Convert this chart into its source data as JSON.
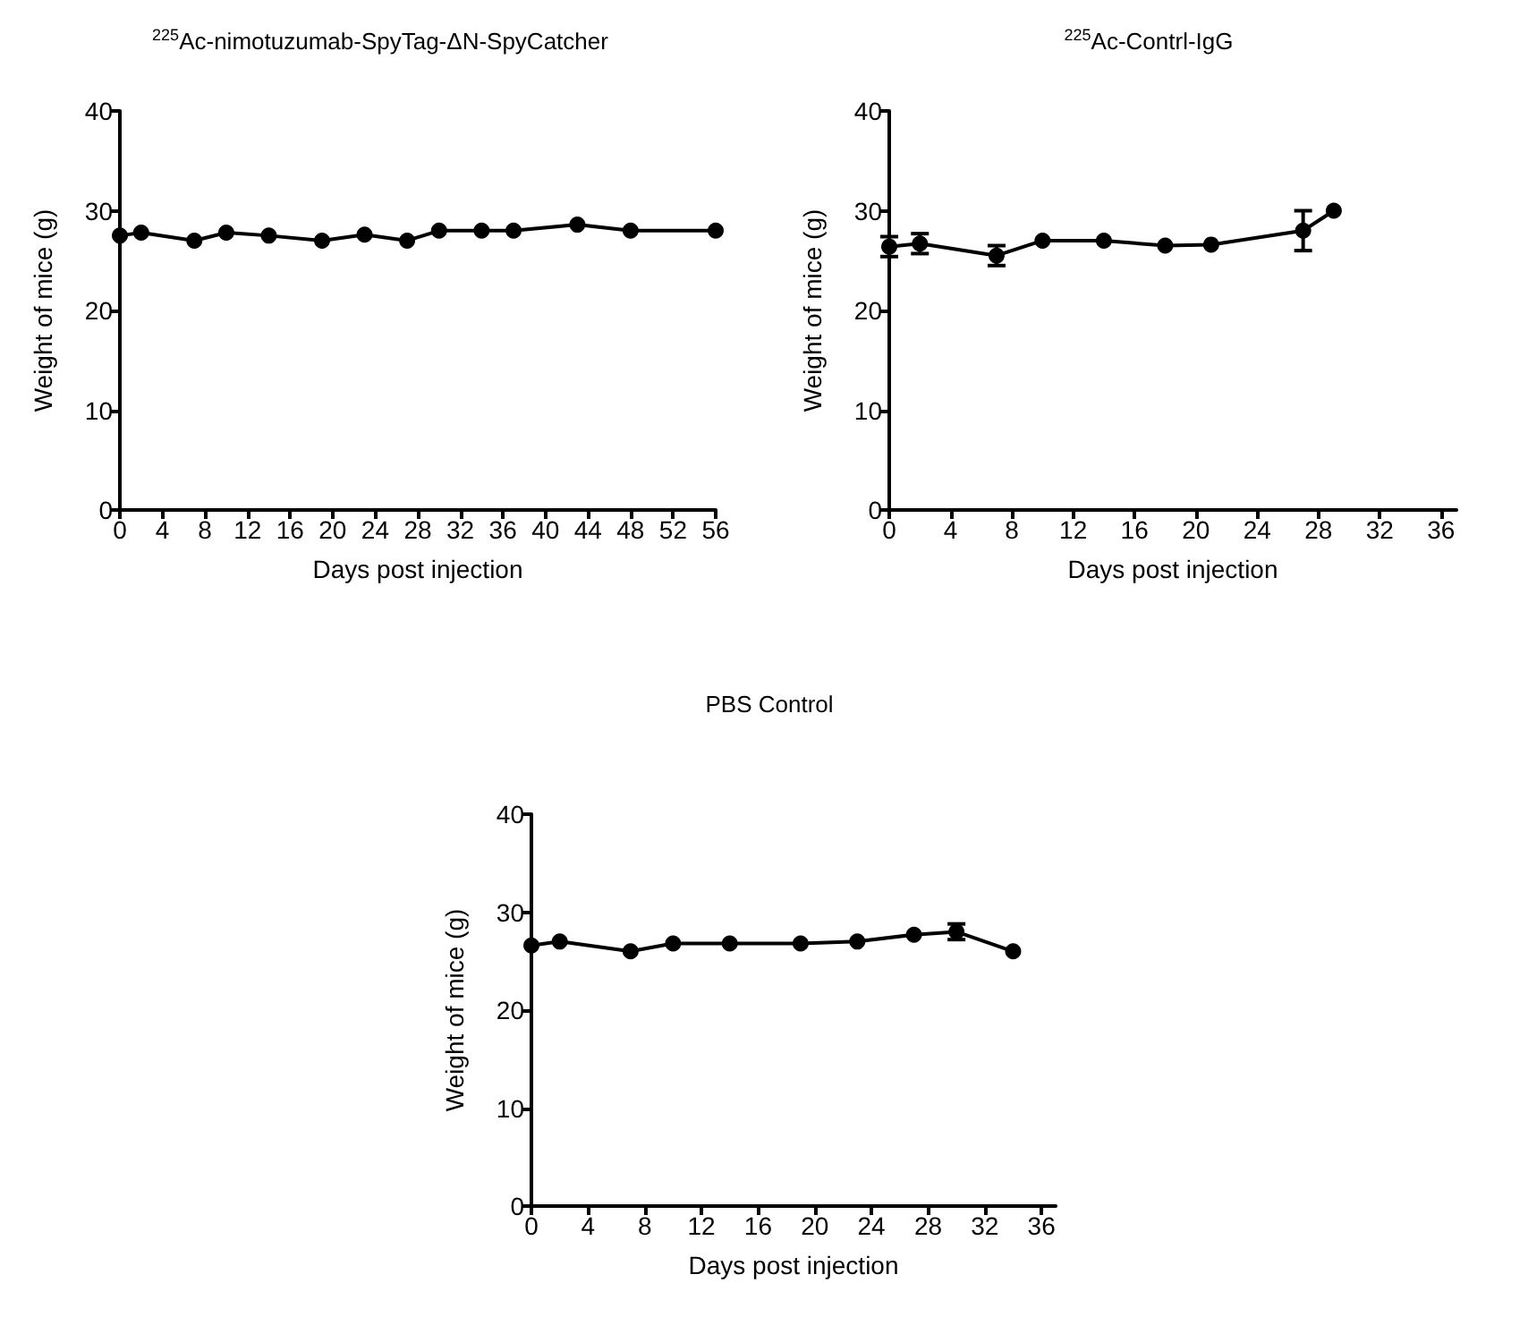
{
  "chart_data": [
    {
      "type": "line",
      "title": "$^{225}$Ac-nimotuzumab-SpyTag-ΔN-SpyCatcher",
      "xlabel": "Days post injection",
      "ylabel": "Weight of mice (g)",
      "color": "#000000",
      "marker": "circle",
      "line_style": "solid",
      "grid": false,
      "x": [
        0,
        2,
        7,
        10,
        14,
        19,
        23,
        27,
        30,
        34,
        37,
        43,
        48,
        56
      ],
      "values": [
        27.5,
        27.8,
        27,
        27.8,
        27.5,
        27,
        27.6,
        27,
        28,
        28,
        28,
        28.6,
        28,
        28
      ],
      "xlim": [
        0,
        56
      ],
      "xticks": [
        0,
        4,
        8,
        12,
        16,
        20,
        24,
        28,
        32,
        36,
        40,
        44,
        48,
        52,
        56
      ],
      "ylim": [
        0,
        40
      ],
      "yticks": [
        0,
        10,
        20,
        30,
        40
      ]
    },
    {
      "type": "line",
      "title": "$^{225}$Ac-Contrl-IgG",
      "xlabel": "Days post injection",
      "ylabel": "Weight of mice (g)",
      "color": "#000000",
      "marker": "circle",
      "line_style": "solid",
      "grid": false,
      "x": [
        0,
        2,
        7,
        10,
        14,
        18,
        21,
        27,
        29
      ],
      "values": [
        26.4,
        26.7,
        25.5,
        27,
        27,
        26.5,
        26.6,
        28,
        30
      ],
      "errors": [
        1,
        1,
        1,
        null,
        null,
        null,
        null,
        2,
        null
      ],
      "xlim": [
        0,
        37
      ],
      "xticks": [
        0,
        4,
        8,
        12,
        16,
        20,
        24,
        28,
        32,
        36
      ],
      "ylim": [
        0,
        40
      ],
      "yticks": [
        0,
        10,
        20,
        30,
        40
      ]
    },
    {
      "type": "line",
      "title": "PBS Control",
      "xlabel": "Days post injection",
      "ylabel": "Weight of mice (g)",
      "color": "#000000",
      "marker": "circle",
      "line_style": "solid",
      "grid": false,
      "x": [
        0,
        2,
        7,
        10,
        14,
        19,
        23,
        27,
        30,
        34
      ],
      "values": [
        26.6,
        27,
        26,
        26.8,
        26.8,
        26.8,
        27,
        27.7,
        28,
        26
      ],
      "errors": [
        null,
        null,
        null,
        null,
        null,
        null,
        null,
        null,
        0.8,
        null
      ],
      "xlim": [
        0,
        37
      ],
      "xticks": [
        0,
        4,
        8,
        12,
        16,
        20,
        24,
        28,
        32,
        36
      ],
      "ylim": [
        0,
        40
      ],
      "yticks": [
        0,
        10,
        20,
        30,
        40
      ]
    }
  ]
}
